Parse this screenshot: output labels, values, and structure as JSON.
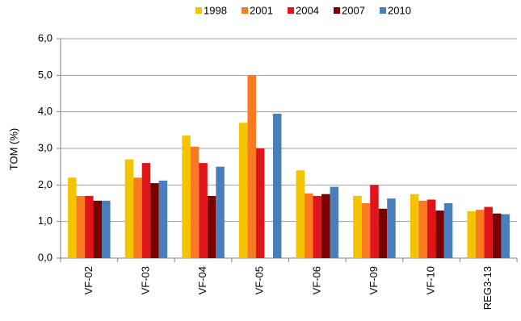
{
  "chart_data": {
    "type": "bar",
    "y_label": "TOM (%)",
    "categories": [
      "VF-02",
      "VF-03",
      "VF-04",
      "VF-05",
      "VF-06",
      "VF-09",
      "VF-10",
      "REG3-13"
    ],
    "series": [
      {
        "name": "1998",
        "color": "#f5c400",
        "values": [
          2.2,
          2.7,
          3.35,
          3.7,
          2.4,
          1.7,
          1.75,
          1.28
        ]
      },
      {
        "name": "2001",
        "color": "#f97a1f",
        "values": [
          1.7,
          2.2,
          3.05,
          5.0,
          1.77,
          1.5,
          1.57,
          1.32
        ]
      },
      {
        "name": "2004",
        "color": "#e0141b",
        "values": [
          1.7,
          2.6,
          2.6,
          3.0,
          1.7,
          2.0,
          1.6,
          1.4
        ]
      },
      {
        "name": "2007",
        "color": "#7a0000",
        "values": [
          1.57,
          2.05,
          1.7,
          null,
          1.75,
          1.35,
          1.3,
          1.22
        ]
      },
      {
        "name": "2010",
        "color": "#4a7ebb",
        "values": [
          1.57,
          2.12,
          2.5,
          3.95,
          1.95,
          1.63,
          1.5,
          1.2
        ]
      }
    ],
    "ylim": [
      0,
      6
    ],
    "yticks": [
      {
        "value": 0,
        "label": "0,0"
      },
      {
        "value": 1,
        "label": "1,0"
      },
      {
        "value": 2,
        "label": "2,0"
      },
      {
        "value": 3,
        "label": "3,0"
      },
      {
        "value": 4,
        "label": "4,0"
      },
      {
        "value": 5,
        "label": "5,0"
      },
      {
        "value": 6,
        "label": "6,0"
      }
    ],
    "grid": true
  }
}
